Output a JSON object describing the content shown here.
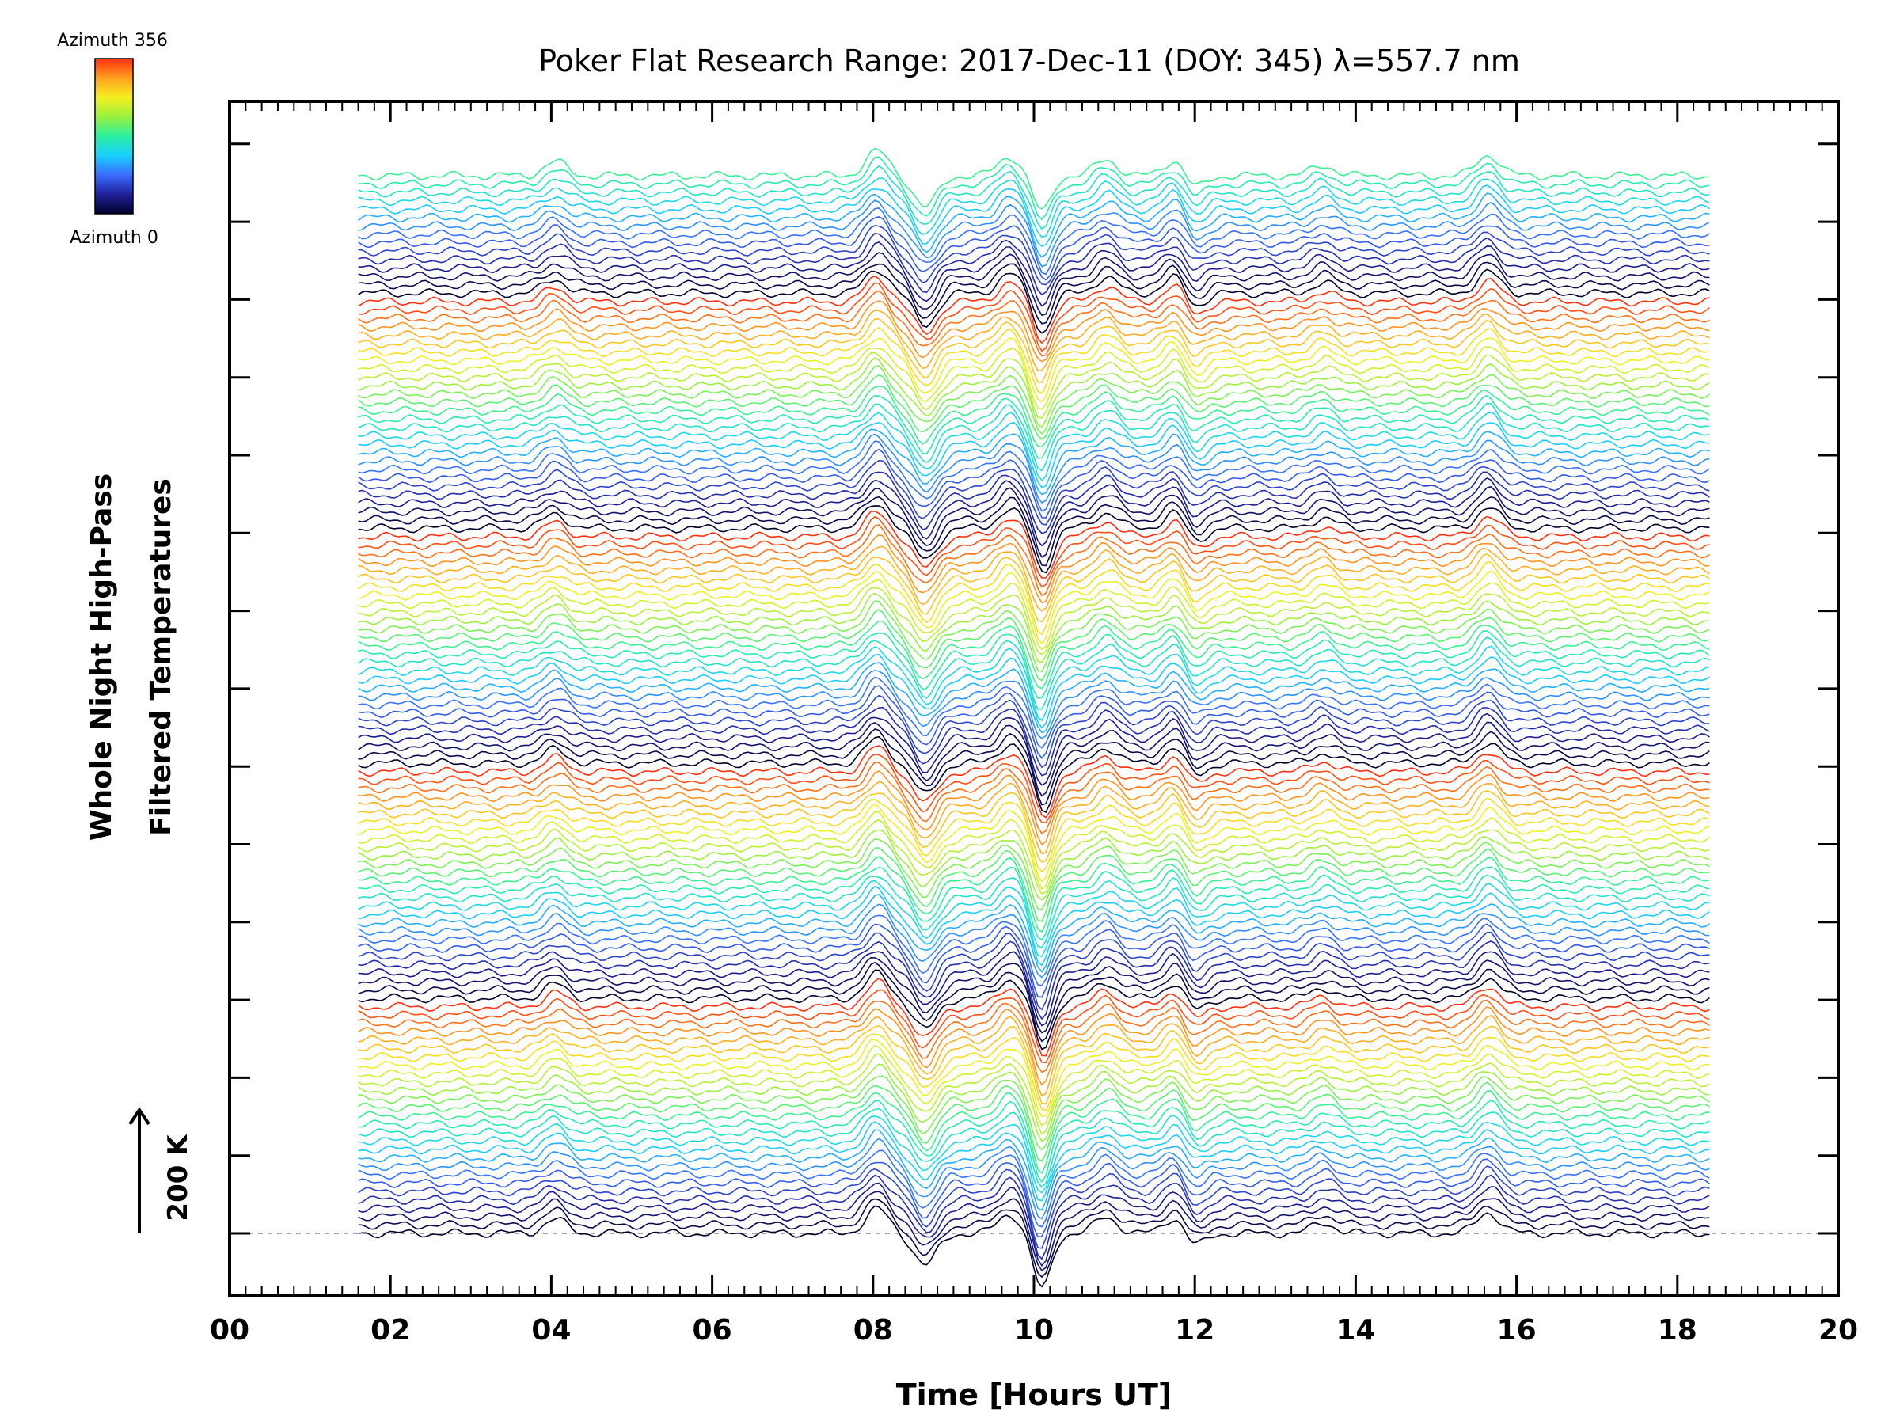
{
  "chart_data": {
    "type": "line",
    "title": "Poker Flat Research Range: 2017-Dec-11 (DOY: 345) λ=557.7 nm",
    "xlabel": "Time [Hours UT]",
    "ylabel_line1": "Whole Night High-Pass",
    "ylabel_line2": "Filtered Temperatures",
    "scale_bar_label": "200 K",
    "xlim": [
      0,
      20
    ],
    "x_ticks": [
      "00",
      "02",
      "04",
      "06",
      "08",
      "10",
      "12",
      "14",
      "16",
      "18",
      "20"
    ],
    "data_x_range": [
      1.6,
      18.4
    ],
    "series_count": 127,
    "colorbar": {
      "top_label": "Azimuth 356",
      "bottom_label": "Azimuth 0",
      "azimuth_range": [
        0,
        356
      ],
      "colors": [
        "#00002a",
        "#20209a",
        "#3a6cff",
        "#1ad0ff",
        "#2af0a0",
        "#9af040",
        "#f5f020",
        "#ffa020",
        "#ff3010"
      ]
    },
    "features": [
      {
        "time": 4.05,
        "amplitude": 40
      },
      {
        "time": 8.05,
        "amplitude": 70
      },
      {
        "time": 8.65,
        "amplitude": -90
      },
      {
        "time": 9.7,
        "amplitude": 55
      },
      {
        "time": 10.1,
        "amplitude": -160
      },
      {
        "time": 10.9,
        "amplitude": 45
      },
      {
        "time": 11.8,
        "amplitude": 70
      },
      {
        "time": 11.95,
        "amplitude": -60
      },
      {
        "time": 13.6,
        "amplitude": 30
      },
      {
        "time": 15.65,
        "amplitude": 60
      }
    ]
  }
}
